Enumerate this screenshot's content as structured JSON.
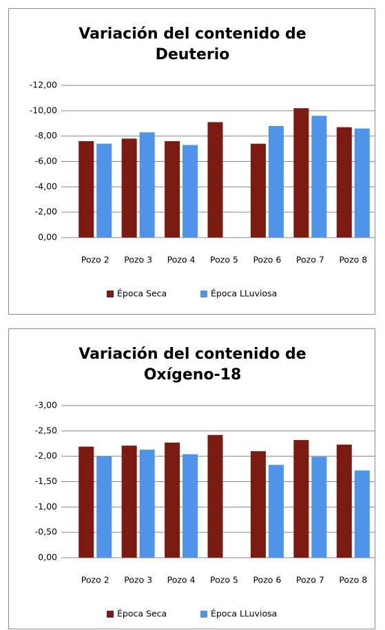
{
  "chart_data": [
    {
      "type": "bar",
      "title": "Variación del contenido de Deuterio",
      "categories": [
        "Pozo 2",
        "Pozo 3",
        "Pozo 4",
        "Pozo 5",
        "Pozo 6",
        "Pozo 7",
        "Pozo 8"
      ],
      "series": [
        {
          "name": "Época Seca",
          "color": "#7b1a10",
          "values": [
            -7.6,
            -7.8,
            -7.6,
            -9.1,
            -7.4,
            -10.2,
            -8.7
          ]
        },
        {
          "name": "Época LLuviosa",
          "color": "#4f94e8",
          "values": [
            -7.4,
            -8.3,
            -7.3,
            null,
            -8.8,
            -9.6,
            -8.6
          ]
        }
      ],
      "ylim": [
        0,
        -12
      ],
      "yticks": [
        {
          "value": -12,
          "label": "-12,00"
        },
        {
          "value": -10,
          "label": "-10,00"
        },
        {
          "value": -8,
          "label": "-8,00"
        },
        {
          "value": -6,
          "label": "-6,00"
        },
        {
          "value": -4,
          "label": "-4,00"
        },
        {
          "value": -2,
          "label": "-2,00"
        },
        {
          "value": 0,
          "label": "0,00"
        }
      ],
      "grid": true,
      "legend": "bottom"
    },
    {
      "type": "bar",
      "title": "Variación del contenido de Oxígeno-18",
      "categories": [
        "Pozo 2",
        "Pozo 3",
        "Pozo 4",
        "Pozo 5",
        "Pozo 6",
        "Pozo 7",
        "Pozo 8"
      ],
      "series": [
        {
          "name": "Época Seca",
          "color": "#7b1a10",
          "values": [
            -2.19,
            -2.21,
            -2.27,
            -2.42,
            -2.1,
            -2.32,
            -2.23
          ]
        },
        {
          "name": "Época LLuviosa",
          "color": "#4f94e8",
          "values": [
            -2.0,
            -2.13,
            -2.04,
            null,
            -1.83,
            -1.99,
            -1.72
          ]
        }
      ],
      "ylim": [
        0,
        -3
      ],
      "yticks": [
        {
          "value": -3,
          "label": "-3,00"
        },
        {
          "value": -2.5,
          "label": "-2,50"
        },
        {
          "value": -2,
          "label": "-2,00"
        },
        {
          "value": -1.5,
          "label": "-1,50"
        },
        {
          "value": -1,
          "label": "-1,00"
        },
        {
          "value": -0.5,
          "label": "-0,50"
        },
        {
          "value": 0,
          "label": "0,00"
        }
      ],
      "grid": true,
      "legend": "bottom"
    }
  ]
}
